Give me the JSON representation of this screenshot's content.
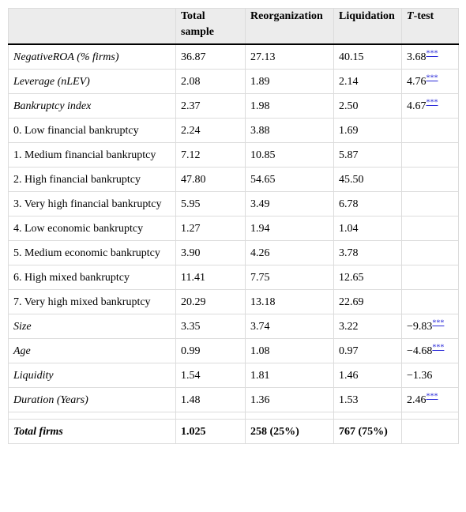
{
  "table": {
    "columns": [
      "Total sample",
      "Reorganization",
      "Liquidation"
    ],
    "test_column": {
      "symbol": "T",
      "suffix": "-test"
    },
    "rows": [
      {
        "label": "NegativeROA (% firms)",
        "italic": true,
        "values": [
          "36.87",
          "27.13",
          "40.15"
        ],
        "test": "3.68",
        "sig": "***"
      },
      {
        "label": "Leverage (nLEV)",
        "italic": true,
        "values": [
          "2.08",
          "1.89",
          "2.14"
        ],
        "test": "4.76",
        "sig": "***"
      },
      {
        "label": "Bankruptcy index",
        "italic": true,
        "values": [
          "2.37",
          "1.98",
          "2.50"
        ],
        "test": "4.67",
        "sig": "***"
      },
      {
        "label": "0. Low financial bankruptcy",
        "italic": false,
        "values": [
          "2.24",
          "3.88",
          "1.69"
        ]
      },
      {
        "label": "1. Medium financial bankruptcy",
        "italic": false,
        "values": [
          "7.12",
          "10.85",
          "5.87"
        ]
      },
      {
        "label": "2. High financial bankruptcy",
        "italic": false,
        "values": [
          "47.80",
          "54.65",
          "45.50"
        ]
      },
      {
        "label": "3. Very high financial bankruptcy",
        "italic": false,
        "values": [
          "5.95",
          "3.49",
          "6.78"
        ]
      },
      {
        "label": "4. Low economic bankruptcy",
        "italic": false,
        "values": [
          "1.27",
          "1.94",
          "1.04"
        ]
      },
      {
        "label": "5. Medium economic bankruptcy",
        "italic": false,
        "values": [
          "3.90",
          "4.26",
          "3.78"
        ]
      },
      {
        "label": "6. High mixed bankruptcy",
        "italic": false,
        "values": [
          "11.41",
          "7.75",
          "12.65"
        ]
      },
      {
        "label": "7. Very high mixed bankruptcy",
        "italic": false,
        "values": [
          "20.29",
          "13.18",
          "22.69"
        ]
      },
      {
        "label": "Size",
        "italic": true,
        "values": [
          "3.35",
          "3.74",
          "3.22"
        ],
        "test": "−9.83",
        "sig": "***"
      },
      {
        "label": "Age",
        "italic": true,
        "values": [
          "0.99",
          "1.08",
          "0.97"
        ],
        "test": "−4.68",
        "sig": "***"
      },
      {
        "label": "Liquidity",
        "italic": true,
        "values": [
          "1.54",
          "1.81",
          "1.46"
        ],
        "test": "−1.36"
      },
      {
        "label": "Duration (Years)",
        "italic": true,
        "values": [
          "1.48",
          "1.36",
          "1.53"
        ],
        "test": "2.46",
        "sig": "***"
      }
    ],
    "total": {
      "label": "Total firms",
      "values": [
        "1.025",
        "258 (25%)",
        "767 (75%)"
      ]
    }
  }
}
